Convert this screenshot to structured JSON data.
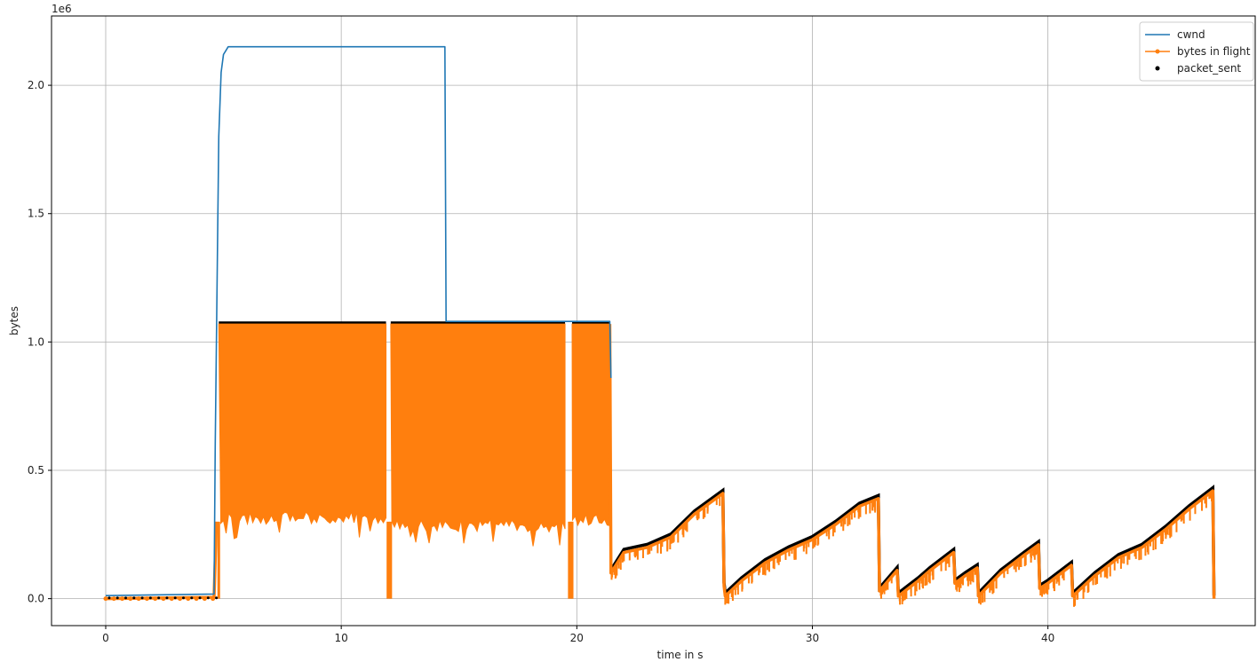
{
  "chart_data": {
    "type": "line",
    "title": "",
    "xlabel": "time in s",
    "ylabel": "bytes",
    "y_offset_label": "1e6",
    "xlim": [
      -2.3,
      48.8
    ],
    "ylim": [
      -0.105,
      2.27
    ],
    "y_scale_factor": 1000000,
    "x_ticks": [
      0,
      10,
      20,
      30,
      40
    ],
    "x_tick_labels": [
      "0",
      "10",
      "20",
      "30",
      "40"
    ],
    "y_ticks": [
      0.0,
      0.5,
      1.0,
      1.5,
      2.0
    ],
    "y_tick_labels": [
      "0.0",
      "0.5",
      "1.0",
      "1.5",
      "2.0"
    ],
    "grid": true,
    "legend_position": "top-right",
    "colors": {
      "cwnd": "#1f77b4",
      "bytes_in_flight": "#ff7f0e",
      "packet_sent": "#000000"
    },
    "series": [
      {
        "name": "cwnd",
        "style": "line",
        "x": [
          0,
          4.6,
          4.65,
          4.8,
          4.9,
          5.0,
          5.2,
          14.4,
          14.45,
          21.4,
          21.45
        ],
        "y": [
          0.012,
          0.018,
          0.6,
          1.8,
          2.05,
          2.12,
          2.15,
          2.15,
          1.08,
          1.08,
          0.86
        ]
      },
      {
        "name": "bytes in flight",
        "style": "line-marker",
        "x": [
          0,
          4.6,
          4.7,
          4.8,
          21.4,
          21.45,
          22,
          23,
          24,
          25,
          26.2,
          26.25,
          26.3,
          27,
          28,
          29,
          30,
          31,
          32,
          32.8,
          32.85,
          33.6,
          33.65,
          34.5,
          35,
          36,
          36.05,
          36.5,
          37,
          37.05,
          38,
          39,
          39.6,
          39.65,
          40,
          41,
          41.05,
          42,
          43,
          44,
          45,
          46,
          47,
          47.05
        ],
        "y": [
          0.0,
          0.005,
          0.3,
          1.07,
          1.07,
          0.1,
          0.18,
          0.2,
          0.24,
          0.33,
          0.41,
          0.05,
          0.01,
          0.07,
          0.14,
          0.19,
          0.23,
          0.29,
          0.36,
          0.39,
          0.03,
          0.11,
          0.01,
          0.07,
          0.11,
          0.18,
          0.06,
          0.09,
          0.12,
          0.01,
          0.1,
          0.17,
          0.21,
          0.04,
          0.06,
          0.13,
          0.01,
          0.09,
          0.16,
          0.2,
          0.27,
          0.35,
          0.42,
          0.0
        ],
        "dense_band": {
          "segments": [
            [
              4.8,
              11.9
            ],
            [
              12.1,
              19.5
            ],
            [
              19.8,
              21.4
            ]
          ],
          "top": 1.07,
          "bottom": [
            0.3,
            0.27,
            0.29
          ]
        },
        "dropouts": [
          12.0,
          19.7
        ]
      },
      {
        "name": "packet_sent",
        "style": "scatter",
        "description_follows": "bytes in flight",
        "band_top": 1.08
      }
    ]
  }
}
